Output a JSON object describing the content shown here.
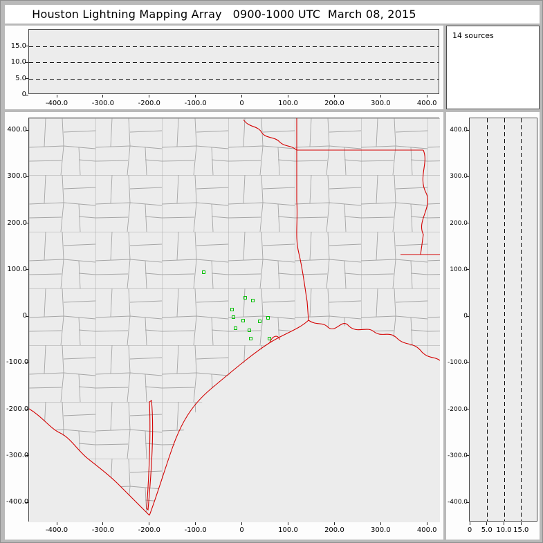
{
  "title": "Houston Lightning Mapping Array   0900-1000 UTC  March 08, 2015",
  "sources_panel": {
    "label": "14 sources"
  },
  "colors": {
    "state_border_red": "#d40000",
    "county_line_gray": "#a5a5a5",
    "station_green": "#00c000",
    "plot_background": "#ececec",
    "frame_gray": "#b9b9b9"
  },
  "axes": {
    "ew_panel": {
      "y_tick_labels": [
        "15.0",
        "10.0",
        "5.0",
        "0"
      ],
      "x_tick_labels": [
        "-400.0",
        "-300.0",
        "-200.0",
        "-100.0",
        "0",
        "100.0",
        "200.0",
        "300.0",
        "400.0"
      ]
    },
    "map_panel": {
      "y_tick_labels": [
        "400.0",
        "300.0",
        "200.0",
        "100.0",
        "0",
        "-100.0",
        "-200.0",
        "-300.0",
        "-400.0"
      ],
      "x_tick_labels": [
        "-400.0",
        "-300.0",
        "-200.0",
        "-100.0",
        "0",
        "100.0",
        "200.0",
        "300.0",
        "400.0"
      ]
    },
    "ns_panel": {
      "y_tick_labels": [
        "400.0",
        "300.0",
        "200.0",
        "100.0",
        "0",
        "-100.0",
        "-200.0",
        "-300.0",
        "-400.0"
      ],
      "x_tick_labels": [
        "0",
        "5.0",
        "10.0",
        "15.0"
      ]
    }
  },
  "chart_data": [
    {
      "type": "scatter",
      "panel": "altitude_vs_east_west",
      "title": "Houston Lightning Mapping Array 0900-1000 UTC March 08, 2015",
      "xlim": [
        -460,
        428
      ],
      "ylim": [
        0,
        20
      ],
      "x_ticks": [
        -400,
        -300,
        -200,
        -100,
        0,
        100,
        200,
        300,
        400
      ],
      "y_ticks": [
        0,
        5,
        10,
        15
      ],
      "dashed_altitude_lines_km": [
        5,
        10,
        15
      ],
      "points": []
    },
    {
      "type": "annotation",
      "panel": "source_count",
      "annotation": "14 sources",
      "points": []
    },
    {
      "type": "map_scatter",
      "panel": "plan_view",
      "xlim": [
        -460,
        428
      ],
      "ylim": [
        -443,
        425
      ],
      "x_ticks": [
        -400,
        -300,
        -200,
        -100,
        0,
        100,
        200,
        300,
        400
      ],
      "y_ticks": [
        400,
        300,
        200,
        100,
        0,
        -100,
        -200,
        -300,
        -400
      ],
      "map_layers": [
        {
          "name": "county_boundaries",
          "color": "#a5a5a5"
        },
        {
          "name": "state_borders_coastline_rivers",
          "color": "#d40000"
        }
      ],
      "station_marker": "green_open_square",
      "stations_km": [
        [
          -82,
          94
        ],
        [
          8,
          38
        ],
        [
          25,
          33
        ],
        [
          -20,
          14
        ],
        [
          -18,
          -3
        ],
        [
          3,
          -10
        ],
        [
          -13,
          -27
        ],
        [
          17,
          -31
        ],
        [
          40,
          -12
        ],
        [
          57,
          -4
        ],
        [
          20,
          -49
        ],
        [
          60,
          -49
        ]
      ]
    },
    {
      "type": "scatter",
      "panel": "altitude_vs_north_south",
      "xlim": [
        0,
        20
      ],
      "ylim": [
        -443,
        425
      ],
      "x_ticks": [
        0,
        5,
        10,
        15
      ],
      "y_ticks": [
        400,
        300,
        200,
        100,
        0,
        -100,
        -200,
        -300,
        -400
      ],
      "dashed_altitude_lines_km": [
        5,
        10,
        15
      ],
      "points": []
    }
  ]
}
